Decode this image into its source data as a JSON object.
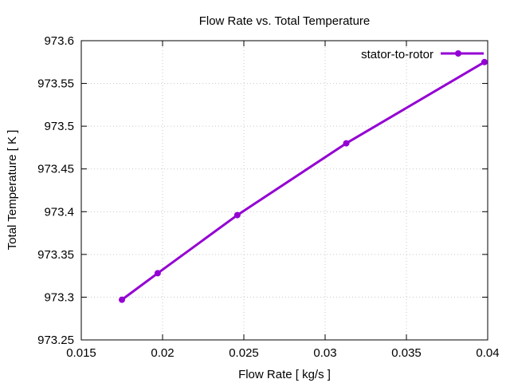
{
  "chart_data": {
    "type": "line",
    "title": "Flow Rate vs. Total Temperature",
    "xlabel": "Flow Rate [ kg/s ]",
    "ylabel": "Total Temperature [ K ]",
    "xlim": [
      0.015,
      0.04
    ],
    "ylim": [
      973.25,
      973.6
    ],
    "xticks": [
      "0.015",
      "0.02",
      "0.025",
      "0.03",
      "0.035",
      "0.04"
    ],
    "yticks": [
      "973.25",
      "973.3",
      "973.35",
      "973.4",
      "973.45",
      "973.5",
      "973.55",
      "973.6"
    ],
    "grid": true,
    "legend_position": "top-right",
    "series": [
      {
        "name": "stator-to-rotor",
        "color": "#9400d3",
        "marker": "circle",
        "x": [
          0.0175,
          0.0197,
          0.0246,
          0.0313,
          0.0398
        ],
        "y": [
          973.297,
          973.328,
          973.396,
          973.48,
          973.575
        ]
      }
    ]
  }
}
